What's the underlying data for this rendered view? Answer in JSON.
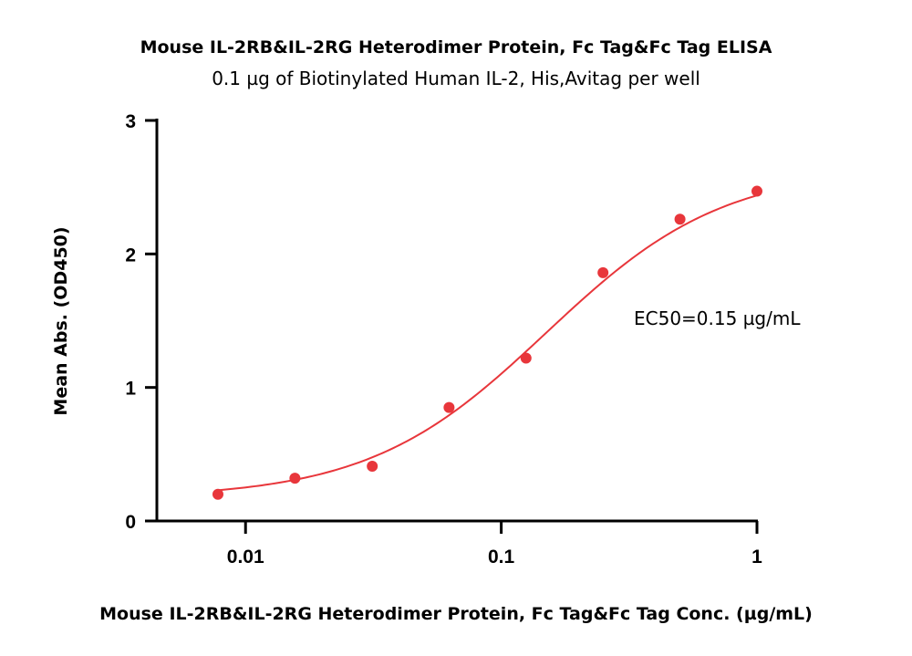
{
  "chart_data": {
    "type": "scatter",
    "title": "Mouse IL-2RB&IL-2RG Heterodimer Protein, Fc Tag&Fc Tag  ELISA",
    "subtitle": "0.1 µg of Biotinylated Human IL-2, His,Avitag per well",
    "xlabel": "Mouse IL-2RB&IL-2RG Heterodimer Protein, Fc Tag&Fc Tag  Conc. (µg/mL)",
    "ylabel": "Mean Abs. (OD450)",
    "xscale": "log",
    "xlim": [
      0.0045,
      1.0
    ],
    "ylim": [
      0,
      3
    ],
    "x_ticks": [
      {
        "value": 0.01,
        "label": "0.01"
      },
      {
        "value": 0.1,
        "label": "0.1"
      },
      {
        "value": 1,
        "label": "1"
      }
    ],
    "y_ticks": [
      {
        "value": 0,
        "label": "0"
      },
      {
        "value": 1,
        "label": "1"
      },
      {
        "value": 2,
        "label": "2"
      },
      {
        "value": 3,
        "label": "3"
      }
    ],
    "series": [
      {
        "x": [
          0.0078,
          0.0156,
          0.0313,
          0.0625,
          0.125,
          0.25,
          0.5,
          1.0
        ],
        "y": [
          0.2,
          0.32,
          0.41,
          0.85,
          1.22,
          1.86,
          2.26,
          2.47
        ],
        "color": "#e8363b",
        "fit": {
          "model": "4PL",
          "bottom": 0.17,
          "top": 2.65,
          "ec50": 0.15,
          "hill": 1.25
        }
      }
    ],
    "annotations": [
      "EC50=0.15 µg/mL"
    ],
    "grid": false,
    "legend": "none"
  }
}
